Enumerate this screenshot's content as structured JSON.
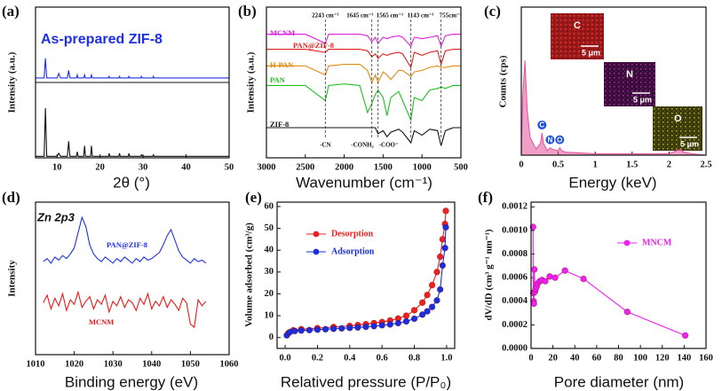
{
  "chart_data": [
    {
      "type": "line",
      "label": "(a)",
      "title": "As-prepared ZIF-8",
      "x_label": "2θ (°)",
      "y_label": "Intensity (a.u.)",
      "x": [
        5,
        7,
        7.3,
        7.6,
        10,
        10.4,
        10.8,
        12.4,
        12.7,
        13,
        14.5,
        14.7,
        14.9,
        16.2,
        16.4,
        16.6,
        17.8,
        18,
        18.2,
        22,
        22.1,
        22.3,
        24.4,
        24.5,
        24.7,
        26.6,
        26.7,
        26.9,
        29.5,
        29.6,
        29.8,
        32.3,
        32.4,
        32.6,
        50
      ],
      "series": [
        {
          "color": "#1f2fe6",
          "values": [
            53,
            53,
            66,
            53,
            53,
            56,
            53,
            53,
            58,
            53,
            53,
            55,
            53,
            53,
            55,
            53,
            53,
            55,
            53,
            53,
            54,
            53,
            53,
            54,
            53,
            53,
            54,
            53,
            53,
            54,
            53,
            53,
            54,
            53,
            53
          ]
        },
        {
          "color": "#111111",
          "values": [
            1,
            1,
            33,
            1,
            1,
            3,
            1,
            1,
            11,
            1,
            1,
            4,
            1,
            1,
            8,
            1,
            1,
            8,
            1,
            1,
            3,
            1,
            1,
            3,
            1,
            1,
            3,
            1,
            1,
            2,
            1,
            1,
            2,
            1,
            1
          ]
        }
      ],
      "xlim": [
        5,
        50
      ],
      "ylim": [
        0,
        100
      ],
      "xticks": [
        10,
        20,
        30,
        40,
        50
      ]
    },
    {
      "type": "line",
      "label": "(b)",
      "x_label": "Wavenumber (cm⁻¹)",
      "y_label": "Intensity (a.u.)",
      "x": [
        3000,
        2800,
        2500,
        2243,
        2200,
        2000,
        1800,
        1700,
        1645,
        1600,
        1565,
        1500,
        1450,
        1400,
        1300,
        1250,
        1143,
        1100,
        1000,
        900,
        800,
        755,
        700,
        600,
        500
      ],
      "series": [
        {
          "name": "MCNM",
          "color": "#e020e0",
          "values": [
            82,
            82,
            82,
            76,
            82,
            82,
            82,
            81,
            77,
            80,
            76,
            80,
            79,
            80,
            81,
            80,
            74,
            80,
            79,
            80,
            81,
            74,
            81,
            82,
            82
          ]
        },
        {
          "name": "PAN@ZIF-8",
          "color": "#e02020",
          "values": [
            72,
            72,
            72,
            70,
            72,
            72,
            72,
            71,
            67,
            69,
            66,
            69,
            68,
            69,
            70,
            69,
            60,
            70,
            68,
            70,
            71,
            62,
            71,
            72,
            72
          ]
        },
        {
          "name": "H-PAN",
          "color": "#e08a10",
          "values": [
            61,
            61,
            61,
            55,
            61,
            62,
            62,
            58,
            50,
            55,
            50,
            57,
            55,
            52,
            58,
            58,
            54,
            57,
            58,
            60,
            61,
            60,
            60,
            61,
            61
          ]
        },
        {
          "name": "PAN",
          "color": "#20c020",
          "values": [
            48,
            48,
            48,
            38,
            48,
            49,
            48,
            30,
            36,
            42,
            45,
            40,
            28,
            40,
            44,
            38,
            25,
            40,
            38,
            45,
            46,
            47,
            46,
            48,
            48
          ]
        },
        {
          "name": "ZIF-8",
          "color": "#111111",
          "values": [
            20,
            20,
            20,
            20,
            20,
            20,
            20,
            20,
            20,
            20,
            16,
            18,
            14,
            17,
            19,
            17,
            10,
            18,
            15,
            19,
            18,
            8,
            18,
            20,
            20
          ]
        }
      ],
      "xlim": [
        3000,
        500
      ],
      "ylim": [
        0,
        100
      ],
      "xticks": [
        3000,
        2500,
        2000,
        1500,
        1000,
        500
      ],
      "legend": "inline",
      "annotations": [
        {
          "text": "2243 cm⁻¹",
          "x": 2243
        },
        {
          "text": "1645 cm⁻¹",
          "x": 1645
        },
        {
          "text": "1565 cm⁻¹",
          "x": 1565
        },
        {
          "text": "1143 cm⁻¹",
          "x": 1143
        },
        {
          "text": "755cm⁻¹",
          "x": 755
        }
      ],
      "group_labels": [
        {
          "text": "-CN",
          "x": 2243
        },
        {
          "text": "-CONH₂",
          "x": 1645
        },
        {
          "text": "-COO⁻",
          "x": 1565
        }
      ]
    },
    {
      "type": "area",
      "label": "(c)",
      "x_label": "Energy (keV)",
      "y_label": "Counts (cps)",
      "x": [
        0,
        0.02,
        0.05,
        0.08,
        0.12,
        0.2,
        0.26,
        0.28,
        0.3,
        0.35,
        0.39,
        0.42,
        0.5,
        0.52,
        0.55,
        0.6,
        1,
        1.5,
        2,
        2.1,
        2.15,
        2.2,
        2.3,
        2.5
      ],
      "series": [
        {
          "color": "#e3529b",
          "values": [
            0,
            40,
            64,
            30,
            12,
            4,
            8,
            15,
            8,
            3,
            5,
            4,
            3,
            5,
            3,
            2,
            1,
            1,
            1,
            3,
            4,
            2,
            1,
            0
          ]
        }
      ],
      "xlim": [
        0,
        2.5
      ],
      "ylim": [
        0,
        100
      ],
      "xticks": [
        0,
        0.5,
        1,
        1.5,
        2,
        2.5
      ],
      "peak_labels": [
        {
          "text": "C",
          "x": 0.28
        },
        {
          "text": "N",
          "x": 0.39
        },
        {
          "text": "O",
          "x": 0.52
        }
      ],
      "insets": [
        {
          "element": "C",
          "scale": "5 μm"
        },
        {
          "element": "N",
          "scale": "5 μm"
        },
        {
          "element": "O",
          "scale": "5 μm"
        }
      ]
    },
    {
      "type": "line",
      "label": "(d)",
      "title": "Zn 2p3",
      "x_label": "Binding energy (eV)",
      "y_label": "Intensity",
      "x": [
        1012,
        1013,
        1014,
        1015,
        1016,
        1017,
        1018,
        1019,
        1020,
        1021,
        1022,
        1023,
        1024,
        1025,
        1026,
        1027,
        1028,
        1029,
        1030,
        1031,
        1032,
        1033,
        1034,
        1035,
        1036,
        1037,
        1038,
        1039,
        1040,
        1041,
        1042,
        1043,
        1044,
        1045,
        1046,
        1047,
        1048,
        1049,
        1050,
        1051,
        1052,
        1053,
        1054
      ],
      "series": [
        {
          "name": "PAN@ZIF-8",
          "color": "#1f2fe6",
          "values": [
            61,
            63,
            60,
            64,
            62,
            65,
            63,
            66,
            70,
            80,
            90,
            84,
            72,
            66,
            63,
            61,
            64,
            62,
            60,
            63,
            61,
            64,
            62,
            60,
            63,
            61,
            64,
            62,
            63,
            65,
            67,
            72,
            78,
            82,
            75,
            68,
            64,
            62,
            60,
            63,
            61,
            62,
            60
          ]
        },
        {
          "name": "MCNM",
          "color": "#f01818",
          "values": [
            34,
            39,
            30,
            37,
            32,
            40,
            29,
            36,
            33,
            41,
            31,
            35,
            38,
            30,
            36,
            33,
            39,
            28,
            35,
            32,
            38,
            31,
            36,
            34,
            29,
            37,
            33,
            40,
            30,
            35,
            32,
            38,
            31,
            36,
            33,
            29,
            37,
            34,
            20,
            18,
            36,
            32,
            35
          ]
        }
      ],
      "xlim": [
        1010,
        1060
      ],
      "ylim": [
        0,
        100
      ],
      "xticks": [
        1010,
        1020,
        1030,
        1040,
        1050,
        1060
      ],
      "legend": "inline"
    },
    {
      "type": "line",
      "label": "(e)",
      "x_label": "Relatived pressure (P/P₀)",
      "y_label": "Volume adsorbed (cm³/g)",
      "series": [
        {
          "name": "Desorption",
          "color": "#f02020",
          "x": [
            0.995,
            0.99,
            0.975,
            0.96,
            0.94,
            0.91,
            0.88,
            0.85,
            0.8,
            0.75,
            0.7,
            0.65,
            0.6,
            0.55,
            0.5,
            0.45,
            0.4,
            0.3,
            0.2,
            0.1,
            0.05,
            0.02
          ],
          "values": [
            58,
            52,
            45,
            37,
            30,
            24,
            19.5,
            16,
            12.5,
            10,
            8.7,
            7.8,
            7.1,
            6.6,
            6.1,
            5.7,
            5.3,
            4.8,
            4.3,
            3.8,
            3.3,
            2
          ]
        },
        {
          "name": "Adsorption",
          "color": "#1a2ee0",
          "x": [
            0.01,
            0.03,
            0.06,
            0.1,
            0.15,
            0.2,
            0.25,
            0.3,
            0.35,
            0.4,
            0.45,
            0.5,
            0.55,
            0.6,
            0.65,
            0.7,
            0.75,
            0.8,
            0.85,
            0.88,
            0.91,
            0.94,
            0.96,
            0.975,
            0.99,
            0.995
          ],
          "values": [
            1,
            2.5,
            3,
            3.2,
            3.4,
            3.6,
            3.8,
            4,
            4.2,
            4.4,
            4.6,
            4.9,
            5.2,
            5.6,
            6,
            6.6,
            7.4,
            8.6,
            10.5,
            12,
            14,
            17,
            22,
            33,
            41,
            50.5
          ]
        }
      ],
      "xlim": [
        -0.05,
        1.05
      ],
      "ylim": [
        -5,
        62
      ],
      "xticks": [
        {
          "value": 0,
          "label": "0.0"
        },
        0.2,
        0.4,
        0.6,
        0.8,
        {
          "value": 1,
          "label": "1.0"
        }
      ],
      "yticks": [
        0,
        10,
        20,
        30,
        40,
        50,
        60
      ],
      "markers": true,
      "legend": "upper left"
    },
    {
      "type": "line",
      "label": "(f)",
      "x_label": "Pore diameter (nm)",
      "y_label": "dV/dD (cm³ g⁻¹ nm⁻¹)",
      "x": [
        1.8,
        2.0,
        2.3,
        2.6,
        3.0,
        3.5,
        4,
        5,
        6,
        8,
        10,
        13,
        17,
        22,
        31,
        48,
        88,
        141
      ],
      "series": [
        {
          "name": "MNCM",
          "color": "#f020f0",
          "values": [
            0.00103,
            0.00047,
            0.0004,
            0.00038,
            0.00067,
            0.00048,
            0.0005,
            0.00052,
            0.00055,
            0.00057,
            0.00058,
            0.00057,
            0.00061,
            0.0006,
            0.00066,
            0.00059,
            0.00031,
            0.00011
          ]
        }
      ],
      "xlim": [
        0,
        160
      ],
      "ylim": [
        0,
        0.00124
      ],
      "xticks": [
        0,
        20,
        40,
        60,
        80,
        100,
        120,
        140,
        160
      ],
      "yticks": [
        {
          "value": 0,
          "label": "0.0000"
        },
        {
          "value": 0.0002,
          "label": "0.0002"
        },
        {
          "value": 0.0004,
          "label": "0.0004"
        },
        {
          "value": 0.0006,
          "label": "0.0006"
        },
        {
          "value": 0.0008,
          "label": "0.0008"
        },
        {
          "value": 0.001,
          "label": "0.0010"
        },
        {
          "value": 0.0012,
          "label": "0.0012"
        }
      ],
      "markers": true,
      "legend": "upper right"
    }
  ]
}
